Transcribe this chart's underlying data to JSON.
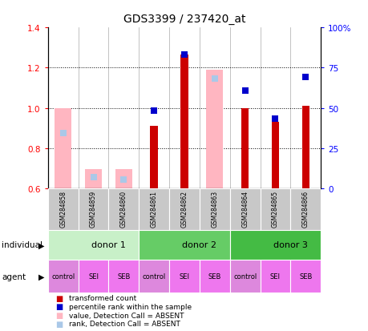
{
  "title": "GDS3399 / 237420_at",
  "samples": [
    "GSM284858",
    "GSM284859",
    "GSM284860",
    "GSM284861",
    "GSM284862",
    "GSM284863",
    "GSM284864",
    "GSM284865",
    "GSM284866"
  ],
  "red_bars": [
    null,
    null,
    null,
    0.91,
    1.265,
    null,
    1.0,
    0.93,
    1.01
  ],
  "pink_bars": [
    1.0,
    0.695,
    0.695,
    null,
    null,
    1.19,
    null,
    null,
    null
  ],
  "ylim_left": [
    0.6,
    1.4
  ],
  "ylim_right": [
    0,
    100
  ],
  "yticks_left": [
    0.6,
    0.8,
    1.0,
    1.2,
    1.4
  ],
  "yticks_right": [
    0,
    25,
    50,
    75,
    100
  ],
  "ytick_labels_right": [
    "0",
    "25",
    "50",
    "75",
    "100%"
  ],
  "donors": [
    {
      "label": "donor 1",
      "start": 0,
      "end": 3,
      "color": "#c8f0c8"
    },
    {
      "label": "donor 2",
      "start": 3,
      "end": 6,
      "color": "#66cc66"
    },
    {
      "label": "donor 3",
      "start": 6,
      "end": 9,
      "color": "#44bb44"
    }
  ],
  "agents": [
    "control",
    "SEI",
    "SEB",
    "control",
    "SEI",
    "SEB",
    "control",
    "SEI",
    "SEB"
  ],
  "agent_colors": [
    "#dd88dd",
    "#ee77ee",
    "#ee77ee",
    "#dd88dd",
    "#ee77ee",
    "#ee77ee",
    "#dd88dd",
    "#ee77ee",
    "#ee77ee"
  ],
  "bar_color_red": "#cc0000",
  "bar_color_pink": "#ffb6c1",
  "bar_color_blue_solid": "#0000cc",
  "bar_color_blue_light": "#aac8e8",
  "sample_bg": "#c8c8c8",
  "bar_width": 0.55,
  "red_bar_width": 0.25,
  "dot_size": 28,
  "blue_y_positions": [
    0.875,
    0.655,
    0.645,
    0.985,
    1.265,
    1.145,
    1.085,
    0.945,
    1.155
  ],
  "is_absent": [
    true,
    true,
    true,
    false,
    false,
    true,
    false,
    false,
    false
  ],
  "base_value": 0.6,
  "legend_items": [
    {
      "label": "transformed count",
      "color": "#cc0000"
    },
    {
      "label": "percentile rank within the sample",
      "color": "#0000cc"
    },
    {
      "label": "value, Detection Call = ABSENT",
      "color": "#ffb6c1"
    },
    {
      "label": "rank, Detection Call = ABSENT",
      "color": "#aac8e8"
    }
  ]
}
